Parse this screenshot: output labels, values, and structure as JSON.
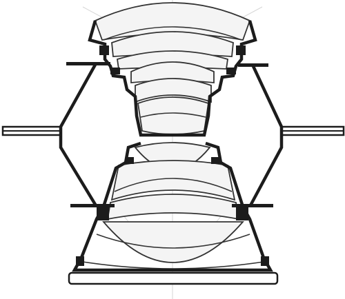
{
  "diagram": {
    "kind": "lens-cross-section",
    "colors": {
      "housing": "#1c1c1c",
      "lens_fill": "#f4f4f4",
      "lens_line": "#333333",
      "faint": "#d6d6d6",
      "background": "#ffffff"
    }
  }
}
